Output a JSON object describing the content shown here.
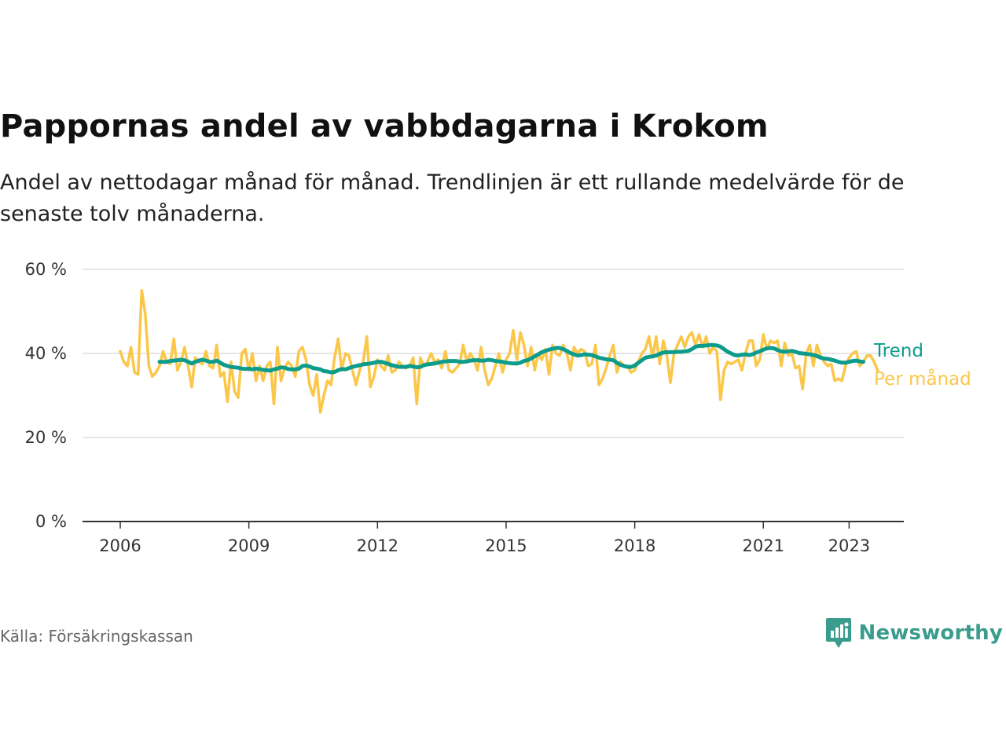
{
  "title": "Pappornas andel av vabbdagarna i Krokom",
  "subtitle": "Andel av nettodagar månad för månad. Trendlinjen är ett rullande medelvärde för de senaste tolv månaderna.",
  "source": "Källa: Försäkringskassan",
  "brand": "Newsworthy",
  "colors": {
    "monthly": "#fbc74a",
    "trend": "#0d9c8c",
    "grid": "#dddddd",
    "axis": "#333333",
    "brand": "#3a9c8c"
  },
  "chart_data": {
    "type": "line",
    "title": "Pappornas andel av vabbdagarna i Krokom",
    "xlabel": "",
    "ylabel": "",
    "ylim": [
      0,
      60
    ],
    "xlim": [
      2006.0,
      2025.083
    ],
    "grid": true,
    "yticks": [
      0,
      20,
      40,
      60
    ],
    "ytick_labels": [
      "0 %",
      "20 %",
      "40 %",
      "60 %"
    ],
    "xticks": [
      2006,
      2009,
      2012,
      2015,
      2018,
      2021,
      2023
    ],
    "xtick_labels": [
      "2006",
      "2009",
      "2012",
      "2015",
      "2018",
      "2021",
      "2023"
    ],
    "legend": [
      {
        "name": "Trend",
        "key": "trend"
      },
      {
        "name": "Per månad",
        "key": "monthly"
      }
    ],
    "series": [
      {
        "name": "Per månad",
        "key": "monthly",
        "start": 2006.0,
        "step": 0.08333,
        "values": [
          40.5,
          38,
          37,
          41.5,
          35.5,
          35,
          55,
          49.5,
          37,
          34.5,
          35.5,
          37,
          40.5,
          38,
          37.5,
          43.5,
          36,
          38,
          41.5,
          37,
          32,
          39,
          38,
          37.5,
          40.5,
          37,
          36.5,
          42,
          34.5,
          35.5,
          28.5,
          38,
          31,
          29.5,
          40,
          41,
          36,
          40,
          33.5,
          37,
          33.5,
          37,
          38,
          28,
          41.5,
          33.5,
          36.5,
          38,
          37,
          34.5,
          40.5,
          41.5,
          38.5,
          32.5,
          30,
          35,
          26,
          30,
          33.5,
          32.5,
          39,
          43.5,
          36,
          40,
          39.5,
          36,
          32.5,
          36,
          38,
          44,
          32,
          34.5,
          38.5,
          37,
          36,
          39.5,
          35.5,
          36,
          38,
          37,
          36.5,
          37,
          39,
          28,
          39,
          37,
          38,
          40,
          38,
          38.5,
          36.5,
          40.5,
          36,
          35.5,
          36.5,
          37.5,
          42,
          38,
          40,
          38.5,
          36,
          41.5,
          36,
          32.5,
          34,
          37,
          40,
          35.5,
          38.5,
          40,
          45.5,
          38.5,
          45,
          42,
          37,
          41.5,
          36,
          40,
          38.5,
          41,
          35,
          42,
          40,
          39.5,
          42,
          40,
          36,
          41.5,
          40,
          41,
          40.5,
          37,
          37.5,
          42,
          32.5,
          34,
          36.5,
          39.5,
          42,
          35.5,
          38,
          37,
          37,
          35.5,
          36,
          38,
          40,
          41,
          44,
          39,
          44,
          37.5,
          43,
          39.5,
          33,
          40,
          42,
          44,
          41.5,
          44,
          45,
          42,
          44.5,
          41.5,
          44,
          40,
          41.5,
          40.5,
          29,
          36,
          38,
          37.5,
          38,
          38.5,
          36,
          40,
          43,
          43,
          37,
          38.5,
          44.5,
          41,
          43,
          42.5,
          43,
          37,
          42.5,
          39.5,
          40,
          36.5,
          37,
          31.5,
          40,
          42,
          37,
          42,
          39.5,
          38,
          37,
          37.5,
          33.5,
          34,
          33.5,
          37,
          39,
          40,
          40.5,
          37,
          38,
          39.5,
          39.5,
          38,
          36
        ]
      },
      {
        "name": "Trend",
        "key": "trend",
        "start": 2006.917,
        "step": 0.08333,
        "values": [
          38,
          38,
          38,
          38.2,
          38.3,
          38.4,
          38.5,
          38.4,
          38,
          37.6,
          38,
          38.3,
          38.5,
          38.3,
          38,
          38,
          38.3,
          37.8,
          37.3,
          37,
          36.8,
          36.7,
          36.6,
          36.4,
          36.3,
          36.4,
          36.2,
          36.4,
          36.3,
          36.1,
          36,
          35.9,
          36.2,
          36.4,
          36.7,
          36.6,
          36.3,
          36.2,
          36.2,
          36.4,
          37,
          37.1,
          36.9,
          36.5,
          36.4,
          36.2,
          35.8,
          35.7,
          35.5,
          35.6,
          36,
          36.3,
          36.2,
          36.5,
          36.8,
          37,
          37.2,
          37.4,
          37.5,
          37.6,
          37.8,
          38,
          38,
          37.8,
          37.5,
          37.2,
          37,
          36.8,
          36.8,
          36.8,
          37,
          36.9,
          36.7,
          36.8,
          37.2,
          37.4,
          37.5,
          37.6,
          37.8,
          38,
          38.1,
          38.2,
          38.2,
          38.2,
          38,
          38,
          38.1,
          38.3,
          38.4,
          38.4,
          38.3,
          38.3,
          38.5,
          38.4,
          38.2,
          38.1,
          38,
          37.8,
          37.7,
          37.6,
          37.6,
          37.8,
          38.2,
          38.4,
          38.8,
          39.3,
          39.8,
          40.3,
          40.6,
          40.9,
          41.1,
          41.3,
          41.3,
          41,
          40.6,
          40.1,
          39.8,
          39.5,
          39.6,
          39.8,
          39.7,
          39.6,
          39.3,
          39,
          38.8,
          38.6,
          38.5,
          38.4,
          37.8,
          37.3,
          37,
          36.8,
          36.8,
          37.1,
          37.8,
          38.4,
          39,
          39.2,
          39.3,
          39.5,
          39.9,
          40.2,
          40.3,
          40.3,
          40.3,
          40.4,
          40.4,
          40.5,
          40.6,
          41,
          41.6,
          41.8,
          41.8,
          41.9,
          42,
          42,
          41.9,
          41.6,
          41,
          40.4,
          40,
          39.6,
          39.5,
          39.7,
          39.8,
          39.6,
          39.8,
          40.2,
          40.5,
          40.9,
          41.2,
          41.3,
          41.2,
          40.8,
          40.5,
          40.4,
          40.5,
          40.6,
          40.4,
          40.1,
          40,
          39.9,
          39.8,
          39.6,
          39.4,
          39,
          38.8,
          38.7,
          38.5,
          38.3,
          38,
          37.8,
          37.8,
          38,
          38.2,
          38.3,
          38.1,
          38
        ]
      }
    ]
  }
}
